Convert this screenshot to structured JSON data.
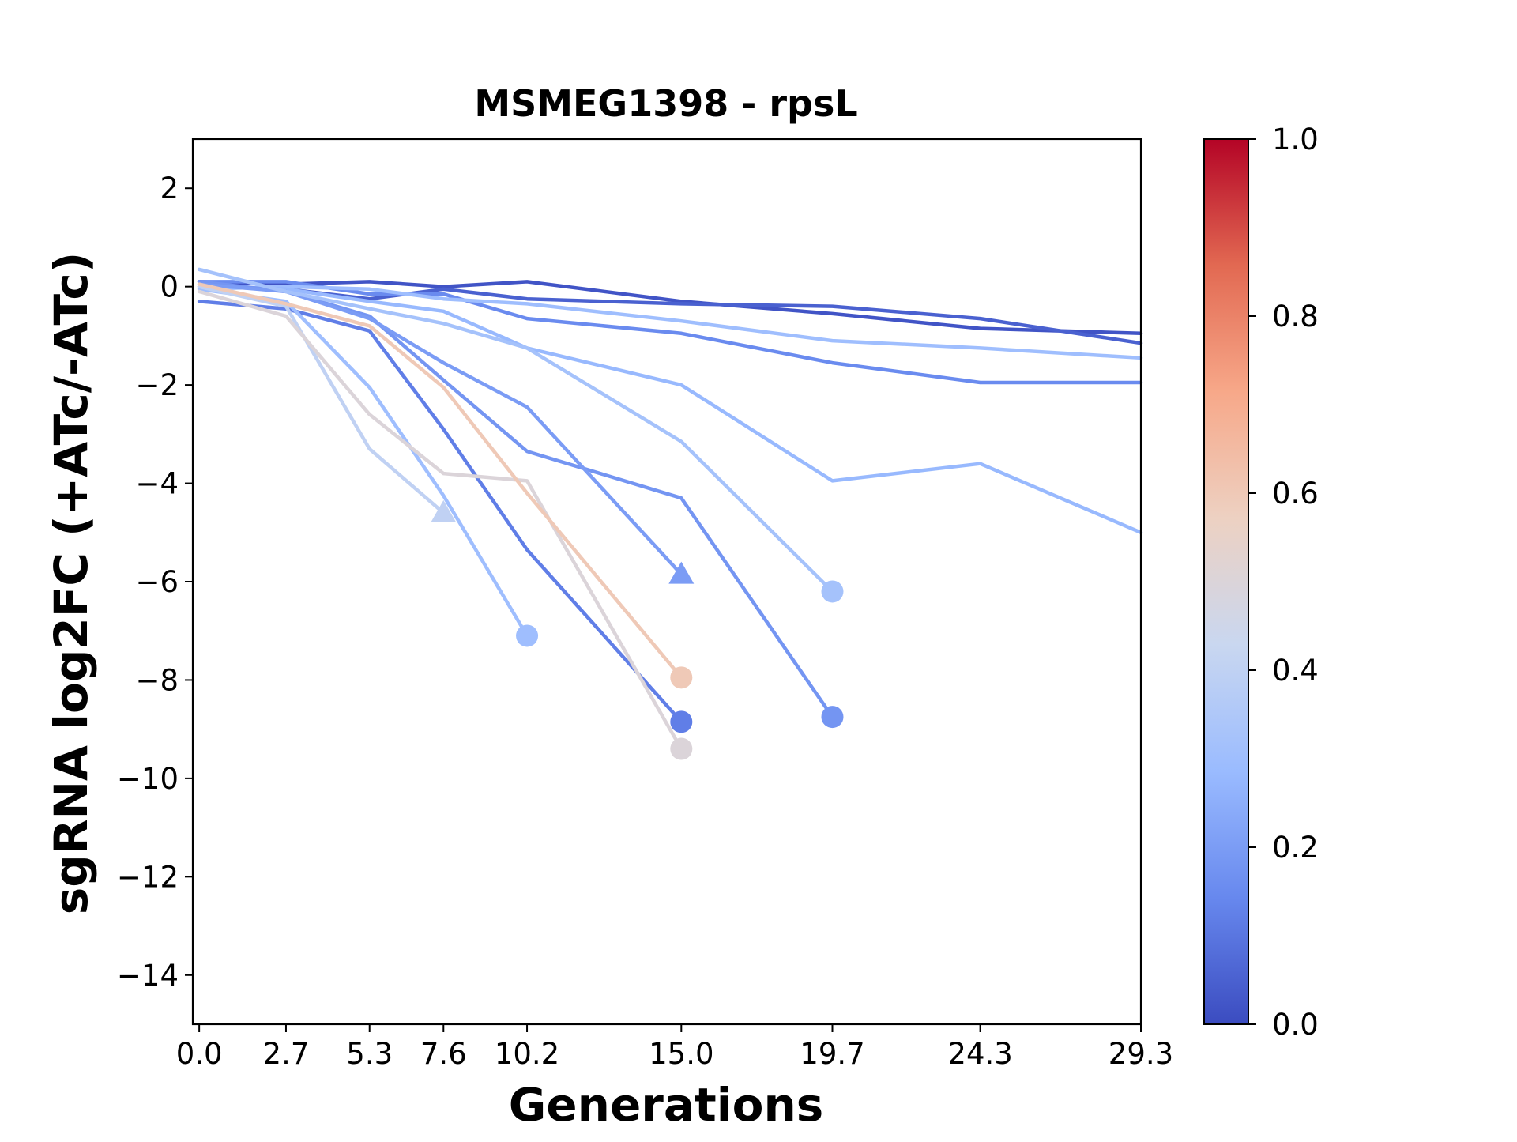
{
  "chart_data": {
    "type": "line",
    "title": "MSMEG1398 - rpsL",
    "xlabel": "Generations",
    "ylabel": "sgRNA log2FC (+ATc/-ATc)",
    "xticks": [
      0.0,
      2.7,
      5.3,
      7.6,
      10.2,
      15.0,
      19.7,
      24.3,
      29.3
    ],
    "xtick_labels": [
      "0.0",
      "2.7",
      "5.3",
      "7.6",
      "10.2",
      "15.0",
      "19.7",
      "24.3",
      "29.3"
    ],
    "yticks": [
      2,
      0,
      -2,
      -4,
      -6,
      -8,
      -10,
      -12,
      -14
    ],
    "ytick_labels": [
      "2",
      "0",
      "−2",
      "−4",
      "−6",
      "−8",
      "−10",
      "−12",
      "−14"
    ],
    "xlim": [
      -0.2,
      29.3
    ],
    "ylim": [
      -15,
      3
    ],
    "grid": false,
    "colorbar": {
      "range": [
        0.0,
        1.0
      ],
      "ticks": [
        0.0,
        0.2,
        0.4,
        0.6,
        0.8,
        1.0
      ],
      "tick_labels": [
        "0.0",
        "0.2",
        "0.4",
        "0.6",
        "0.8",
        "1.0"
      ],
      "colormap": "coolwarm",
      "colors": [
        "#3b4cc0",
        "#6788ee",
        "#9abbff",
        "#c9d7f0",
        "#edd1c2",
        "#f7a889",
        "#e26952",
        "#b40426"
      ]
    },
    "series": [
      {
        "color_value": 0.02,
        "x": [
          0.0,
          2.7,
          5.3,
          7.6,
          10.2,
          15.0,
          19.7,
          24.3,
          29.3
        ],
        "y": [
          0.1,
          0.05,
          0.1,
          0.0,
          0.1,
          -0.3,
          -0.55,
          -0.85,
          -0.95
        ],
        "end_marker": "none"
      },
      {
        "color_value": 0.05,
        "x": [
          0.0,
          2.7,
          5.3,
          7.6,
          10.2,
          15.0,
          19.7,
          24.3,
          29.3
        ],
        "y": [
          0.0,
          -0.05,
          -0.25,
          -0.05,
          -0.25,
          -0.35,
          -0.4,
          -0.65,
          -1.15
        ],
        "end_marker": "none"
      },
      {
        "color_value": 0.15,
        "x": [
          0.0,
          2.7,
          5.3,
          7.6,
          10.2,
          15.0,
          19.7,
          24.3,
          29.3
        ],
        "y": [
          0.1,
          0.1,
          -0.15,
          -0.15,
          -0.65,
          -0.95,
          -1.55,
          -1.95,
          -1.95
        ],
        "end_marker": "none"
      },
      {
        "color_value": 0.3,
        "x": [
          0.0,
          2.7,
          5.3,
          7.6,
          10.2,
          15.0,
          19.7,
          24.3,
          29.3
        ],
        "y": [
          -0.05,
          0.0,
          -0.05,
          -0.25,
          -0.35,
          -0.7,
          -1.1,
          -1.25,
          -1.45
        ],
        "end_marker": "none"
      },
      {
        "color_value": 0.28,
        "x": [
          0.0,
          2.7,
          5.3,
          7.6,
          10.2,
          15.0,
          19.7,
          24.3,
          29.3
        ],
        "y": [
          0.0,
          -0.05,
          -0.3,
          -0.5,
          -1.25,
          -2.0,
          -3.95,
          -3.6,
          -5.0
        ],
        "end_marker": "none"
      },
      {
        "color_value": 0.12,
        "x": [
          0.0,
          2.7,
          5.3,
          7.6,
          10.2,
          15.0
        ],
        "y": [
          -0.3,
          -0.45,
          -0.9,
          -2.9,
          -5.35,
          -8.85
        ],
        "end_marker": "circle"
      },
      {
        "color_value": 0.18,
        "x": [
          0.0,
          2.7,
          5.3,
          7.6,
          10.2,
          15.0,
          19.7
        ],
        "y": [
          0.1,
          -0.1,
          -0.6,
          -1.9,
          -3.35,
          -4.3,
          -8.75
        ],
        "end_marker": "circle"
      },
      {
        "color_value": 0.2,
        "x": [
          0.0,
          2.7,
          5.3,
          7.6,
          10.2,
          15.0
        ],
        "y": [
          0.05,
          -0.1,
          -0.65,
          -1.55,
          -2.45,
          -5.85
        ],
        "end_marker": "triangle"
      },
      {
        "color_value": 0.32,
        "x": [
          0.0,
          2.7,
          5.3,
          7.6,
          10.2,
          15.0,
          19.7
        ],
        "y": [
          0.35,
          -0.1,
          -0.45,
          -0.75,
          -1.25,
          -3.15,
          -6.2
        ],
        "end_marker": "circle"
      },
      {
        "color_value": 0.3,
        "x": [
          0.0,
          2.7,
          5.3,
          7.6,
          10.2
        ],
        "y": [
          -0.05,
          -0.3,
          -2.05,
          -4.25,
          -7.1
        ],
        "end_marker": "circle"
      },
      {
        "color_value": 0.4,
        "x": [
          0.0,
          2.7,
          5.3,
          7.6
        ],
        "y": [
          0.0,
          -0.4,
          -3.3,
          -4.6
        ],
        "end_marker": "triangle"
      },
      {
        "color_value": 0.5,
        "x": [
          0.0,
          2.7,
          5.3,
          7.6,
          10.2,
          15.0
        ],
        "y": [
          -0.1,
          -0.6,
          -2.6,
          -3.8,
          -3.95,
          -9.4
        ],
        "end_marker": "circle"
      },
      {
        "color_value": 0.6,
        "x": [
          0.0,
          2.7,
          5.3,
          7.6,
          10.2,
          15.0
        ],
        "y": [
          0.05,
          -0.35,
          -0.8,
          -2.05,
          -4.2,
          -7.95
        ],
        "end_marker": "circle"
      }
    ]
  }
}
